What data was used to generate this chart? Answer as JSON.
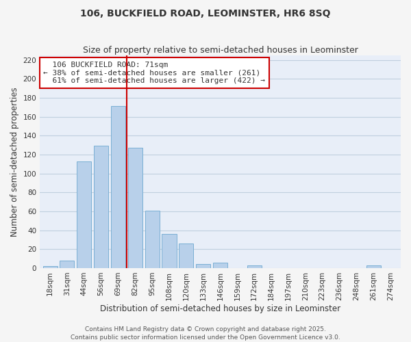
{
  "title": "106, BUCKFIELD ROAD, LEOMINSTER, HR6 8SQ",
  "subtitle": "Size of property relative to semi-detached houses in Leominster",
  "xlabel": "Distribution of semi-detached houses by size in Leominster",
  "ylabel": "Number of semi-detached properties",
  "bar_labels": [
    "18sqm",
    "31sqm",
    "44sqm",
    "56sqm",
    "69sqm",
    "82sqm",
    "95sqm",
    "108sqm",
    "120sqm",
    "133sqm",
    "146sqm",
    "159sqm",
    "172sqm",
    "184sqm",
    "197sqm",
    "210sqm",
    "223sqm",
    "236sqm",
    "248sqm",
    "261sqm",
    "274sqm"
  ],
  "bar_values": [
    2,
    8,
    113,
    129,
    171,
    127,
    61,
    36,
    26,
    4,
    6,
    0,
    3,
    0,
    0,
    0,
    0,
    0,
    0,
    3,
    0
  ],
  "bar_color": "#b8d0ea",
  "bar_edge_color": "#7aafd4",
  "plot_bg_color": "#e8eef8",
  "fig_bg_color": "#f5f5f5",
  "grid_color": "#c0cfdf",
  "ylim": [
    0,
    225
  ],
  "yticks": [
    0,
    20,
    40,
    60,
    80,
    100,
    120,
    140,
    160,
    180,
    200,
    220
  ],
  "property_label": "106 BUCKFIELD ROAD: 71sqm",
  "pct_smaller": 38,
  "pct_smaller_count": 261,
  "pct_larger": 61,
  "pct_larger_count": 422,
  "vline_color": "#cc0000",
  "annotation_box_color": "#ffffff",
  "annotation_box_edge": "#cc0000",
  "footer1": "Contains HM Land Registry data © Crown copyright and database right 2025.",
  "footer2": "Contains public sector information licensed under the Open Government Licence v3.0.",
  "title_fontsize": 10,
  "subtitle_fontsize": 9,
  "axis_label_fontsize": 8.5,
  "tick_fontsize": 7.5,
  "annotation_fontsize": 8,
  "footer_fontsize": 6.5
}
